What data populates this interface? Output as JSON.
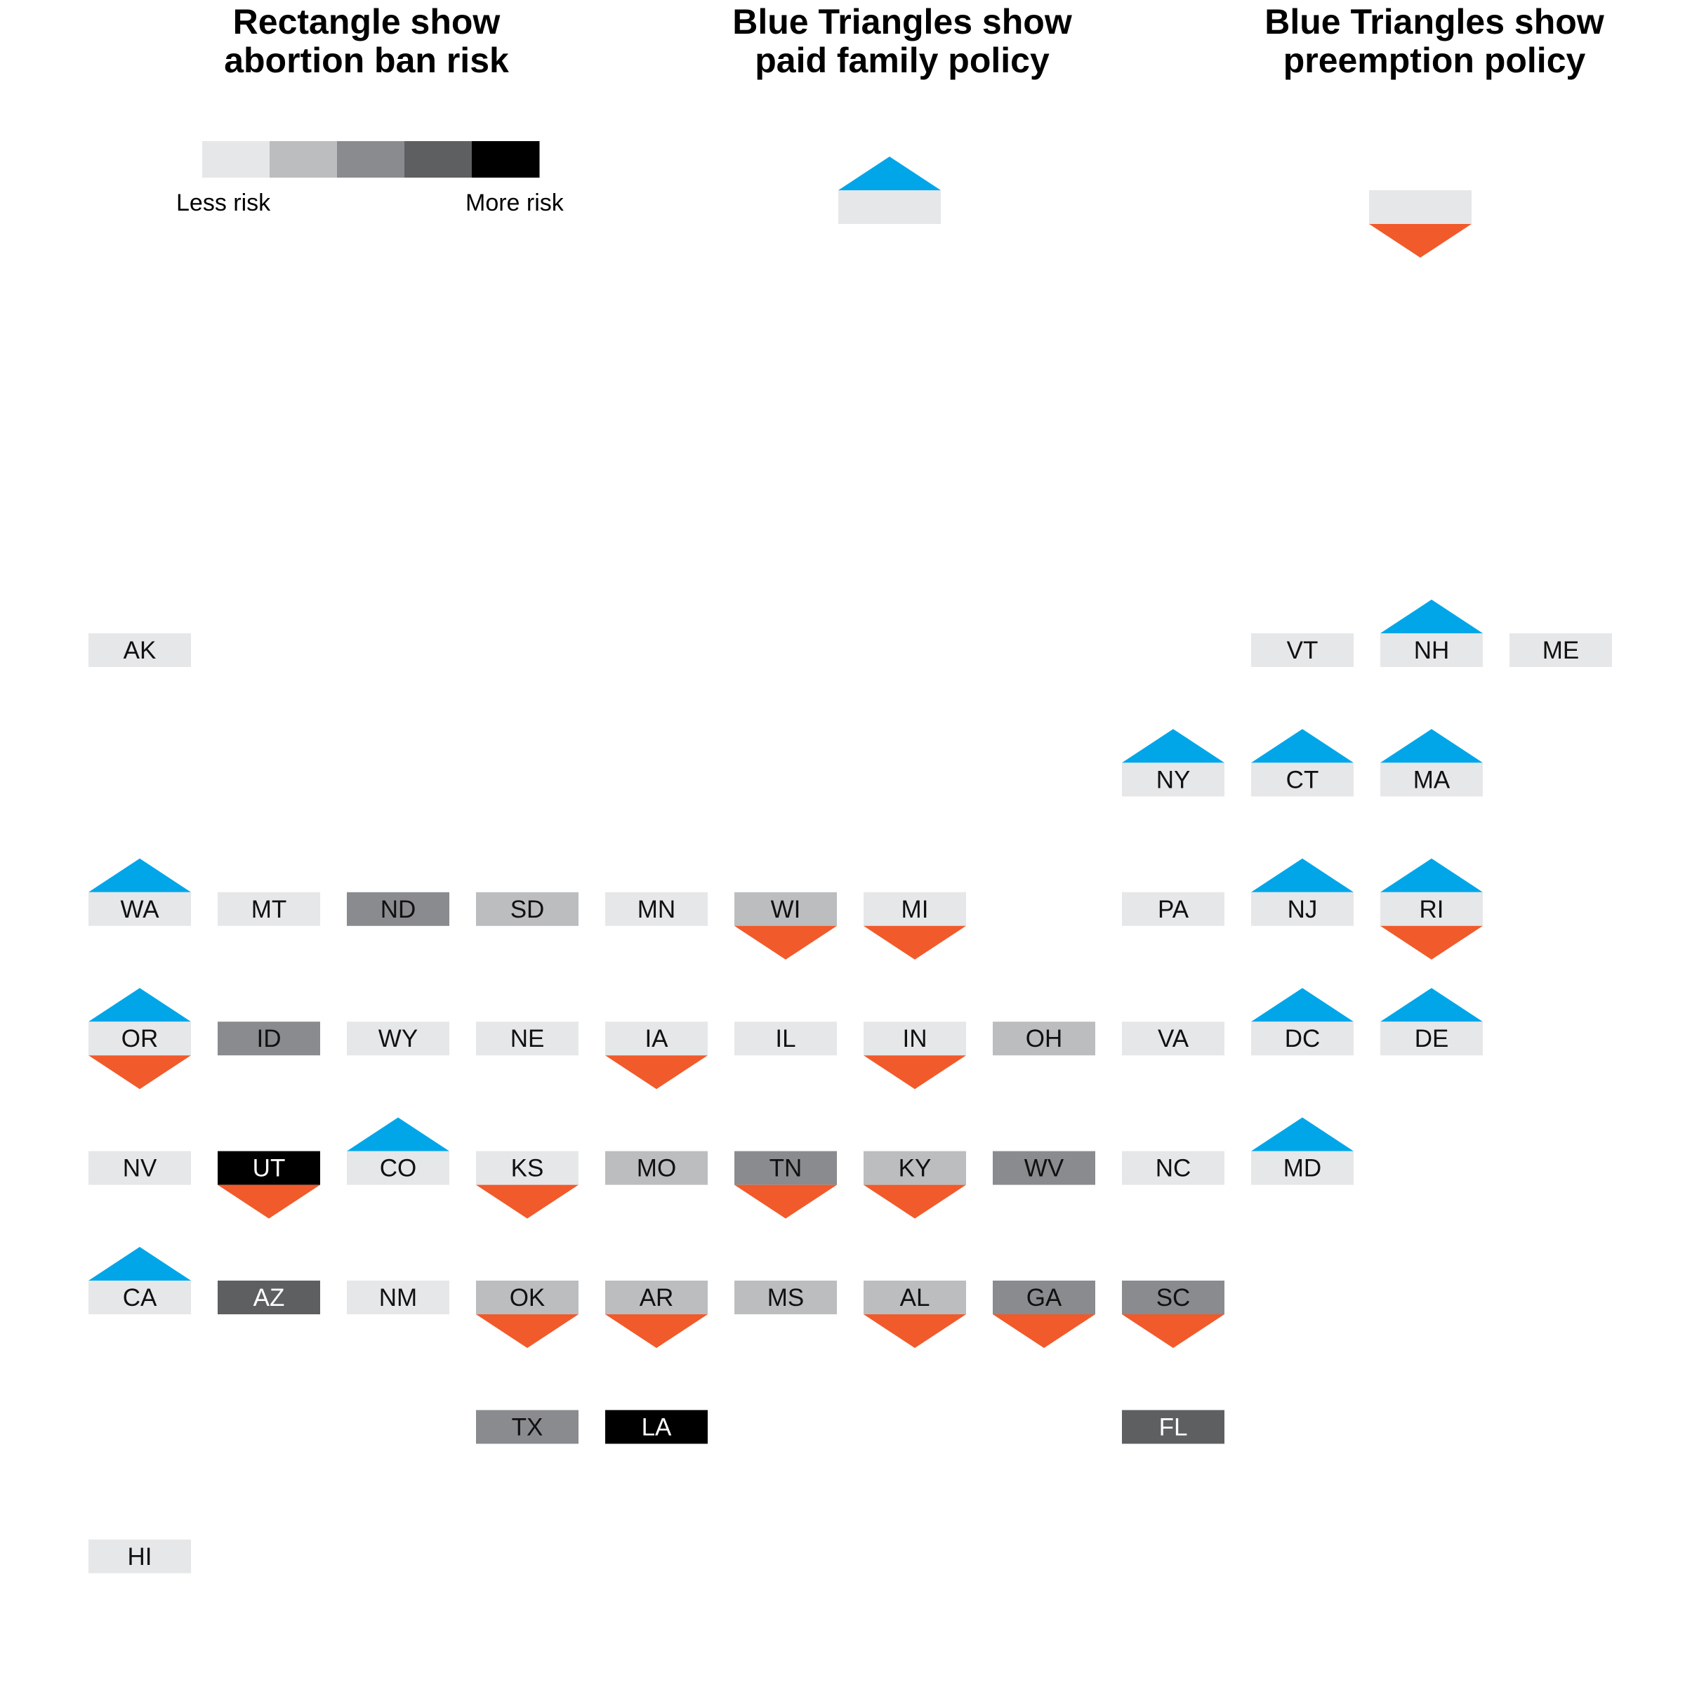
{
  "titles": {
    "abortion": [
      "Rectangle show",
      "abortion ban risk"
    ],
    "paid_family": [
      "Blue Triangles show",
      "paid family policy"
    ],
    "preemption": [
      "Blue Triangles show",
      "preemption policy"
    ]
  },
  "legend": {
    "less_label": "Less risk",
    "more_label": "More risk",
    "risk_colors": [
      "#e6e7e8",
      "#bcbdbf",
      "#8a8b8e",
      "#5e5f61",
      "#000000"
    ]
  },
  "colors": {
    "blue_triangle": "#00a6e8",
    "orange_triangle": "#f15a2b",
    "text_dark": "#111111",
    "text_light": "#ffffff"
  },
  "states": [
    {
      "abbr": "AK",
      "row": 0,
      "col": 0,
      "risk": 0,
      "paid_family": false,
      "preemption": false
    },
    {
      "abbr": "VT",
      "row": 0,
      "col": 9,
      "risk": 0,
      "paid_family": false,
      "preemption": false
    },
    {
      "abbr": "NH",
      "row": 0,
      "col": 10,
      "risk": 0,
      "paid_family": true,
      "preemption": false
    },
    {
      "abbr": "ME",
      "row": 0,
      "col": 11,
      "risk": 0,
      "paid_family": false,
      "preemption": false
    },
    {
      "abbr": "NY",
      "row": 1,
      "col": 8,
      "risk": 0,
      "paid_family": true,
      "preemption": false
    },
    {
      "abbr": "CT",
      "row": 1,
      "col": 9,
      "risk": 0,
      "paid_family": true,
      "preemption": false
    },
    {
      "abbr": "MA",
      "row": 1,
      "col": 10,
      "risk": 0,
      "paid_family": true,
      "preemption": false
    },
    {
      "abbr": "WA",
      "row": 2,
      "col": 0,
      "risk": 0,
      "paid_family": true,
      "preemption": false
    },
    {
      "abbr": "MT",
      "row": 2,
      "col": 1,
      "risk": 0,
      "paid_family": false,
      "preemption": false
    },
    {
      "abbr": "ND",
      "row": 2,
      "col": 2,
      "risk": 2,
      "paid_family": false,
      "preemption": false
    },
    {
      "abbr": "SD",
      "row": 2,
      "col": 3,
      "risk": 1,
      "paid_family": false,
      "preemption": false
    },
    {
      "abbr": "MN",
      "row": 2,
      "col": 4,
      "risk": 0,
      "paid_family": false,
      "preemption": false
    },
    {
      "abbr": "WI",
      "row": 2,
      "col": 5,
      "risk": 1,
      "paid_family": false,
      "preemption": true
    },
    {
      "abbr": "MI",
      "row": 2,
      "col": 6,
      "risk": 0,
      "paid_family": false,
      "preemption": true
    },
    {
      "abbr": "PA",
      "row": 2,
      "col": 8,
      "risk": 0,
      "paid_family": false,
      "preemption": false
    },
    {
      "abbr": "NJ",
      "row": 2,
      "col": 9,
      "risk": 0,
      "paid_family": true,
      "preemption": false
    },
    {
      "abbr": "RI",
      "row": 2,
      "col": 10,
      "risk": 0,
      "paid_family": true,
      "preemption": true
    },
    {
      "abbr": "OR",
      "row": 3,
      "col": 0,
      "risk": 0,
      "paid_family": true,
      "preemption": true
    },
    {
      "abbr": "ID",
      "row": 3,
      "col": 1,
      "risk": 2,
      "paid_family": false,
      "preemption": false
    },
    {
      "abbr": "WY",
      "row": 3,
      "col": 2,
      "risk": 0,
      "paid_family": false,
      "preemption": false
    },
    {
      "abbr": "NE",
      "row": 3,
      "col": 3,
      "risk": 0,
      "paid_family": false,
      "preemption": false
    },
    {
      "abbr": "IA",
      "row": 3,
      "col": 4,
      "risk": 0,
      "paid_family": false,
      "preemption": true
    },
    {
      "abbr": "IL",
      "row": 3,
      "col": 5,
      "risk": 0,
      "paid_family": false,
      "preemption": false
    },
    {
      "abbr": "IN",
      "row": 3,
      "col": 6,
      "risk": 0,
      "paid_family": false,
      "preemption": true
    },
    {
      "abbr": "OH",
      "row": 3,
      "col": 7,
      "risk": 1,
      "paid_family": false,
      "preemption": false
    },
    {
      "abbr": "VA",
      "row": 3,
      "col": 8,
      "risk": 0,
      "paid_family": false,
      "preemption": false
    },
    {
      "abbr": "DC",
      "row": 3,
      "col": 9,
      "risk": 0,
      "paid_family": true,
      "preemption": false
    },
    {
      "abbr": "DE",
      "row": 3,
      "col": 10,
      "risk": 0,
      "paid_family": true,
      "preemption": false
    },
    {
      "abbr": "NV",
      "row": 4,
      "col": 0,
      "risk": 0,
      "paid_family": false,
      "preemption": false
    },
    {
      "abbr": "UT",
      "row": 4,
      "col": 1,
      "risk": 4,
      "paid_family": false,
      "preemption": true
    },
    {
      "abbr": "CO",
      "row": 4,
      "col": 2,
      "risk": 0,
      "paid_family": true,
      "preemption": false
    },
    {
      "abbr": "KS",
      "row": 4,
      "col": 3,
      "risk": 0,
      "paid_family": false,
      "preemption": true
    },
    {
      "abbr": "MO",
      "row": 4,
      "col": 4,
      "risk": 1,
      "paid_family": false,
      "preemption": false
    },
    {
      "abbr": "TN",
      "row": 4,
      "col": 5,
      "risk": 2,
      "paid_family": false,
      "preemption": true
    },
    {
      "abbr": "KY",
      "row": 4,
      "col": 6,
      "risk": 1,
      "paid_family": false,
      "preemption": true
    },
    {
      "abbr": "WV",
      "row": 4,
      "col": 7,
      "risk": 2,
      "paid_family": false,
      "preemption": false
    },
    {
      "abbr": "NC",
      "row": 4,
      "col": 8,
      "risk": 0,
      "paid_family": false,
      "preemption": false
    },
    {
      "abbr": "MD",
      "row": 4,
      "col": 9,
      "risk": 0,
      "paid_family": true,
      "preemption": false
    },
    {
      "abbr": "CA",
      "row": 5,
      "col": 0,
      "risk": 0,
      "paid_family": true,
      "preemption": false
    },
    {
      "abbr": "AZ",
      "row": 5,
      "col": 1,
      "risk": 3,
      "paid_family": false,
      "preemption": false
    },
    {
      "abbr": "NM",
      "row": 5,
      "col": 2,
      "risk": 0,
      "paid_family": false,
      "preemption": false
    },
    {
      "abbr": "OK",
      "row": 5,
      "col": 3,
      "risk": 1,
      "paid_family": false,
      "preemption": true
    },
    {
      "abbr": "AR",
      "row": 5,
      "col": 4,
      "risk": 1,
      "paid_family": false,
      "preemption": true
    },
    {
      "abbr": "MS",
      "row": 5,
      "col": 5,
      "risk": 1,
      "paid_family": false,
      "preemption": false
    },
    {
      "abbr": "AL",
      "row": 5,
      "col": 6,
      "risk": 1,
      "paid_family": false,
      "preemption": true
    },
    {
      "abbr": "GA",
      "row": 5,
      "col": 7,
      "risk": 2,
      "paid_family": false,
      "preemption": true
    },
    {
      "abbr": "SC",
      "row": 5,
      "col": 8,
      "risk": 2,
      "paid_family": false,
      "preemption": true
    },
    {
      "abbr": "TX",
      "row": 6,
      "col": 3,
      "risk": 2,
      "paid_family": false,
      "preemption": false
    },
    {
      "abbr": "LA",
      "row": 6,
      "col": 4,
      "risk": 4,
      "paid_family": false,
      "preemption": false
    },
    {
      "abbr": "FL",
      "row": 6,
      "col": 8,
      "risk": 3,
      "paid_family": false,
      "preemption": false
    },
    {
      "abbr": "HI",
      "row": 7,
      "col": 0,
      "risk": 0,
      "paid_family": false,
      "preemption": false
    }
  ]
}
